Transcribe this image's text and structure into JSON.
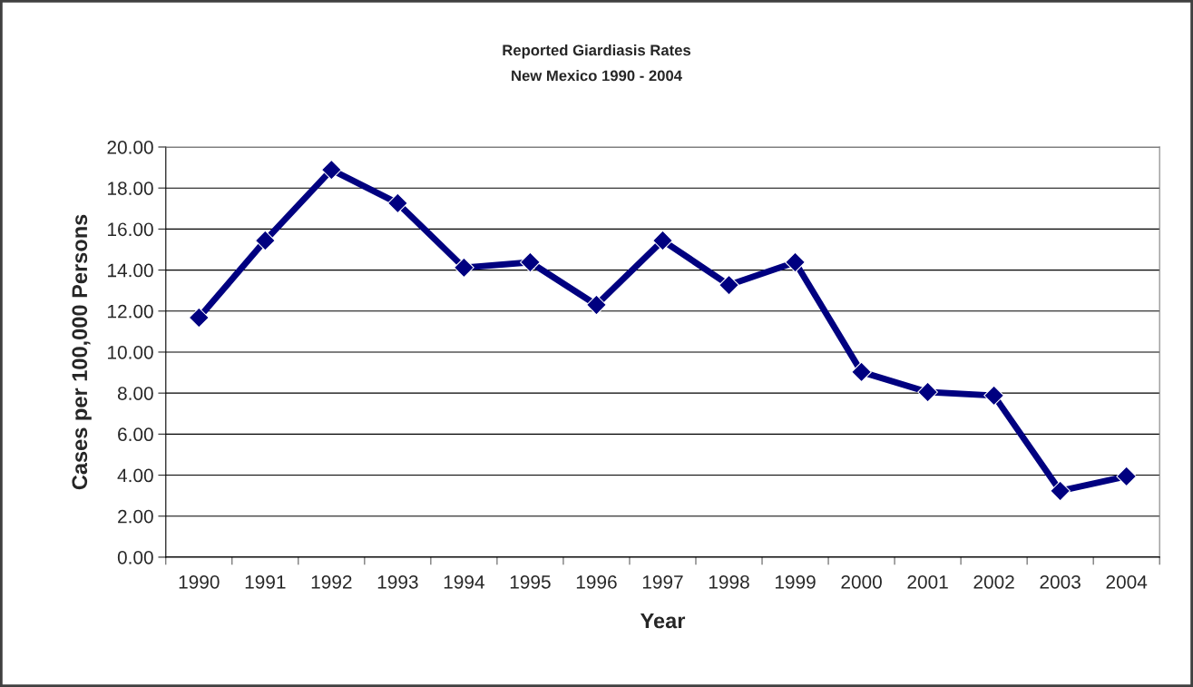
{
  "chart_data": {
    "type": "line",
    "title": "Reported Giardiasis Rates",
    "subtitle": "New Mexico 1990 - 2004",
    "xlabel": "Year",
    "ylabel": "Cases per 100,000 Persons",
    "categories": [
      "1990",
      "1991",
      "1992",
      "1993",
      "1994",
      "1995",
      "1996",
      "1997",
      "1998",
      "1999",
      "2000",
      "2001",
      "2002",
      "2003",
      "2004"
    ],
    "series": [
      {
        "color": "#000080",
        "values": [
          11.68,
          15.44,
          18.89,
          17.26,
          14.12,
          14.38,
          12.3,
          15.44,
          13.27,
          14.38,
          9.03,
          8.05,
          7.88,
          3.23,
          3.94
        ]
      }
    ],
    "ylim": [
      0,
      20
    ],
    "yticks": [
      {
        "value": 0,
        "label": "0.00"
      },
      {
        "value": 2,
        "label": "2.00"
      },
      {
        "value": 4,
        "label": "4.00"
      },
      {
        "value": 6,
        "label": "6.00"
      },
      {
        "value": 8,
        "label": "8.00"
      },
      {
        "value": 10,
        "label": "10.00"
      },
      {
        "value": 12,
        "label": "12.00"
      },
      {
        "value": 14,
        "label": "14.00"
      },
      {
        "value": 16,
        "label": "16.00"
      },
      {
        "value": 18,
        "label": "18.00"
      },
      {
        "value": 20,
        "label": "20.00"
      }
    ],
    "grid": "y",
    "marker": "diamond",
    "line_style": "solid"
  }
}
